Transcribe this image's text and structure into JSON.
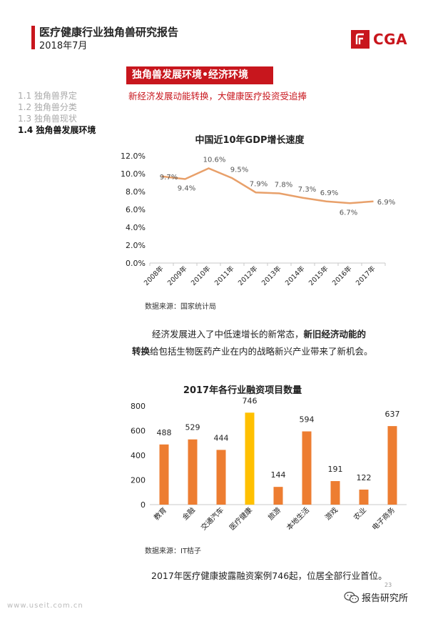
{
  "header": {
    "title": "医疗健康行业独角兽研究报告",
    "date": "2018年7月",
    "logo_text": "CGA",
    "accent_color": "#c8161d"
  },
  "section": {
    "banner": "独角兽发展环境•经济环境",
    "subtitle": "新经济发展动能转换，大健康医疗投资受追捧"
  },
  "toc": [
    {
      "label": "1.1 独角兽界定",
      "active": false
    },
    {
      "label": "1.2 独角兽分类",
      "active": false
    },
    {
      "label": "1.3 独角兽现状",
      "active": false
    },
    {
      "label": "1.4 独角兽发展环境",
      "active": true
    }
  ],
  "chart_data": [
    {
      "type": "line",
      "title": "中国近10年GDP增长速度",
      "categories": [
        "2008年",
        "2009年",
        "2010年",
        "2011年",
        "2012年",
        "2013年",
        "2014年",
        "2015年",
        "2016年",
        "2017年"
      ],
      "values": [
        9.7,
        9.4,
        10.6,
        9.5,
        7.9,
        7.8,
        7.3,
        6.9,
        6.7,
        6.9
      ],
      "data_labels": [
        "9.7%",
        "9.4%",
        "10.6%",
        "9.5%",
        "7.9%",
        "7.8%",
        "7.3%",
        "6.9%",
        "6.7%",
        "6.9%"
      ],
      "y_ticks": [
        "0.0%",
        "2.0%",
        "4.0%",
        "6.0%",
        "8.0%",
        "10.0%",
        "12.0%"
      ],
      "ylim": [
        0,
        12
      ],
      "line_color": "#e8a06a",
      "grid": false,
      "source": "数据来源：国家统计局"
    },
    {
      "type": "bar",
      "title": "2017年各行业融资项目数量",
      "categories": [
        "教育",
        "金融",
        "交通汽车",
        "医疗健康",
        "旅游",
        "本地生活",
        "游戏",
        "农业",
        "电子商务"
      ],
      "values": [
        488,
        529,
        444,
        746,
        144,
        594,
        191,
        122,
        637
      ],
      "data_labels": [
        "488",
        "529",
        "444",
        "746",
        "144",
        "594",
        "191",
        "122",
        "637"
      ],
      "y_ticks": [
        "0",
        "200",
        "400",
        "600",
        "800"
      ],
      "ylim": [
        0,
        800
      ],
      "bar_color": "#ed7d31",
      "highlight_color": "#ffc000",
      "highlight_index": 3,
      "grid": false,
      "source": "数据来源：IT桔子"
    }
  ],
  "paragraphs": {
    "p1_normal_a": "经济发展进入了中低速增长的新常态，",
    "p1_bold_a": "新旧经济动能的",
    "p1_bold_b": "转换",
    "p1_normal_b": "给包括生物医药产业在内的战略新兴产业带来了新机会。",
    "p2": "2017年医疗健康披露融资案例746起，位居全部行业首位。"
  },
  "footer": {
    "url": "www.useit.com.cn",
    "wechat": "报告研究所",
    "page": "23"
  }
}
